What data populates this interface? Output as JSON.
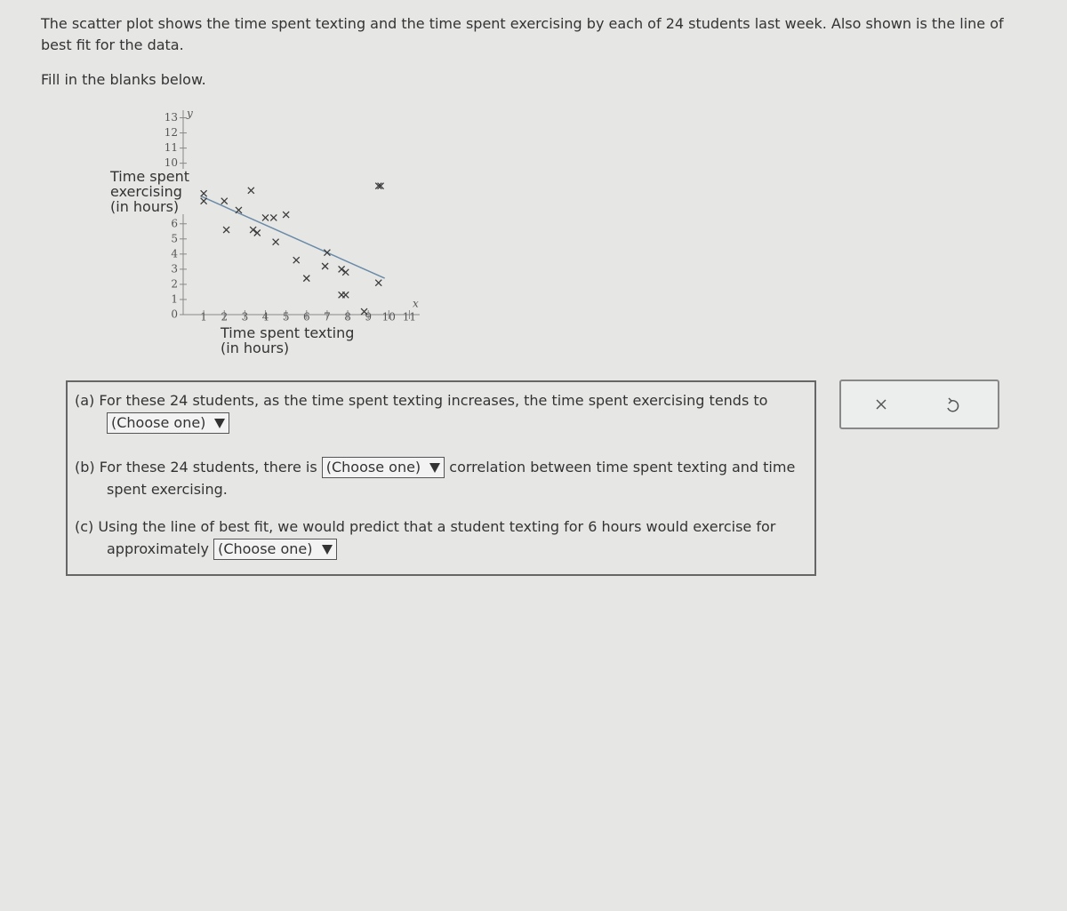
{
  "intro": "The scatter plot shows the time spent texting and the time spent exercising by each of 24 students last week. Also shown is the line of best fit for the data.",
  "instruction": "Fill in the blanks below.",
  "chart_data": {
    "type": "scatter",
    "ylabel": [
      "Time spent",
      "exercising",
      "(in hours)"
    ],
    "xlabel": [
      "Time spent texting",
      "(in hours)"
    ],
    "y_axis_symbol": "y",
    "x_axis_symbol": "x",
    "x": [
      1,
      1,
      2,
      3.3,
      2.7,
      2.1,
      3.4,
      3.6,
      4,
      4.4,
      5,
      4.5,
      5.5,
      6,
      6.9,
      7,
      7.7,
      7.9,
      7.7,
      7.9,
      8.8,
      9.5,
      9.5,
      9.6
    ],
    "values": [
      8,
      7.5,
      7.5,
      8.2,
      6.9,
      5.6,
      5.6,
      5.4,
      6.4,
      6.4,
      6.6,
      4.8,
      3.6,
      2.4,
      3.2,
      4.1,
      3,
      2.8,
      1.3,
      1.3,
      0.2,
      2.1,
      8.5,
      8.5
    ],
    "color": "#3a3a3a",
    "fit_line": {
      "x": [
        0.9,
        9.8
      ],
      "values": [
        7.8,
        2.4
      ],
      "color": "#6a8aa8"
    },
    "xlim": [
      0,
      11.5
    ],
    "ylim": [
      0,
      13.5
    ],
    "xticks": [
      1,
      2,
      3,
      4,
      5,
      6,
      7,
      8,
      9,
      10,
      11
    ],
    "yticks": [
      0,
      1,
      2,
      3,
      4,
      5,
      6,
      10,
      11,
      12,
      13
    ]
  },
  "questions": [
    {
      "label": "(a)",
      "before": "For these 24 students, as the time spent texting increases, the time spent exercising tends to",
      "select": "(Choose one)"
    },
    {
      "label": "(b)",
      "before": "For these 24 students, there is",
      "select": "(Choose one)",
      "after": "correlation between time spent texting and time spent exercising."
    },
    {
      "label": "(c)",
      "before": "Using the line of best fit, we would predict that a student texting for 6 hours would exercise for approximately",
      "select": "(Choose one)"
    }
  ]
}
